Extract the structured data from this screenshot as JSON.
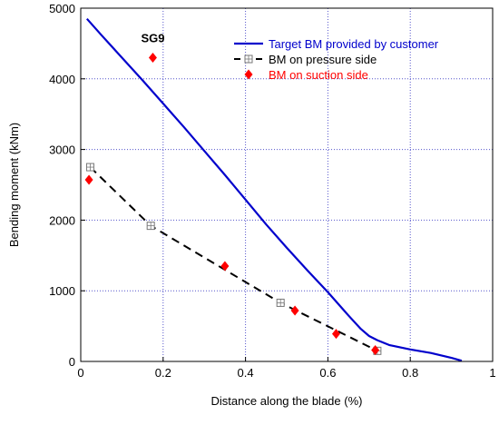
{
  "chart_data": {
    "type": "line",
    "title": "",
    "xlabel": "Distance along the blade (%)",
    "ylabel": "Bending moment (kNm)",
    "xlim": [
      0,
      1
    ],
    "ylim": [
      0,
      5000
    ],
    "x_ticks": [
      "0",
      "0.2",
      "0.4",
      "0.6",
      "0.8",
      "1"
    ],
    "y_ticks": [
      "0",
      "1000",
      "2000",
      "3000",
      "4000",
      "5000"
    ],
    "grid": true,
    "legend_position": "top-right",
    "annotations": [
      {
        "text": "SG9",
        "x": 0.175,
        "y": 4520
      }
    ],
    "series": [
      {
        "name": "Target BM provided by customer",
        "style": "solid-line",
        "color": "#0000cc",
        "x": [
          0.015,
          0.05,
          0.1,
          0.15,
          0.2,
          0.25,
          0.3,
          0.35,
          0.4,
          0.45,
          0.5,
          0.55,
          0.6,
          0.65,
          0.68,
          0.7,
          0.72,
          0.75,
          0.8,
          0.85,
          0.9,
          0.925
        ],
        "y": [
          4850,
          4620,
          4300,
          3980,
          3650,
          3320,
          2980,
          2640,
          2290,
          1940,
          1610,
          1290,
          980,
          650,
          460,
          360,
          300,
          230,
          170,
          120,
          50,
          10
        ]
      },
      {
        "name": "BM on pressure side",
        "style": "dashed-line-square-markers",
        "color": "#000000",
        "x": [
          0.023,
          0.17,
          0.485,
          0.72
        ],
        "y": [
          2750,
          1920,
          830,
          150
        ]
      },
      {
        "name": "BM on suction side",
        "style": "diamond-markers",
        "color": "#ff0000",
        "x": [
          0.02,
          0.175,
          0.35,
          0.52,
          0.62,
          0.715
        ],
        "y": [
          2570,
          4300,
          1350,
          720,
          390,
          160
        ]
      }
    ]
  }
}
